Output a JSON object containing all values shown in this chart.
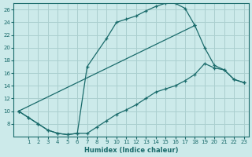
{
  "xlabel": "Humidex (Indice chaleur)",
  "background_color": "#cceaea",
  "grid_color": "#aacfcf",
  "line_color": "#1a6b6b",
  "xlim": [
    -0.5,
    23.5
  ],
  "ylim": [
    6,
    27
  ],
  "xtick_labels": [
    "1",
    "2",
    "3",
    "4",
    "5",
    "6",
    "7",
    "8",
    "9",
    "10",
    "11",
    "12",
    "13",
    "14",
    "15",
    "16",
    "17",
    "18",
    "19",
    "20",
    "21",
    "22",
    "23"
  ],
  "xtick_pos": [
    1,
    2,
    3,
    4,
    5,
    6,
    7,
    8,
    9,
    10,
    11,
    12,
    13,
    14,
    15,
    16,
    17,
    18,
    19,
    20,
    21,
    22,
    23
  ],
  "ytick_pos": [
    8,
    10,
    12,
    14,
    16,
    18,
    20,
    22,
    24,
    26
  ],
  "ytick_labels": [
    "8",
    "10",
    "12",
    "14",
    "16",
    "18",
    "20",
    "22",
    "24",
    "26"
  ],
  "curve1_x": [
    0,
    1,
    2,
    3,
    4,
    5,
    6,
    7,
    9,
    10,
    11,
    12,
    13,
    14,
    15,
    16,
    17,
    18
  ],
  "curve1_y": [
    10,
    9,
    8,
    7,
    6.5,
    6.3,
    6.5,
    17,
    21.5,
    24,
    24.5,
    25,
    25.8,
    26.5,
    27,
    27,
    26.2,
    23.5
  ],
  "curve2_x": [
    0,
    1,
    2,
    3,
    4,
    5,
    6,
    7,
    8,
    9,
    10,
    11,
    12,
    13,
    14,
    15,
    16,
    17,
    18,
    19,
    20,
    21,
    22,
    23
  ],
  "curve2_y": [
    10,
    9,
    8,
    7,
    6.5,
    6.3,
    6.5,
    6.5,
    7.5,
    8.5,
    9.5,
    10.2,
    11.0,
    12.0,
    13.0,
    13.5,
    14.0,
    14.8,
    15.8,
    17.5,
    16.8,
    16.5,
    15.0,
    14.5
  ],
  "curve3_x": [
    0,
    18,
    19,
    20,
    21,
    22,
    23
  ],
  "curve3_y": [
    10,
    23.5,
    20.0,
    17.2,
    16.5,
    15.0,
    14.5
  ]
}
